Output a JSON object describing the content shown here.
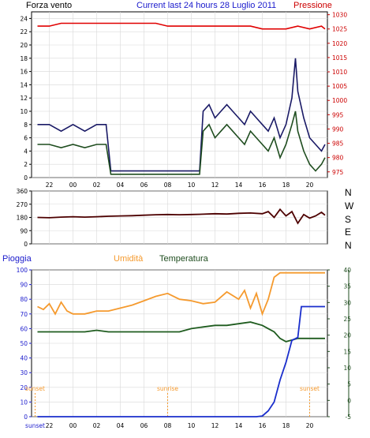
{
  "chart_data": [
    {
      "type": "line",
      "title": "Current last 24 hours 28 Luglio 2011",
      "left_label": "Forza vento",
      "right_label": "Pressione",
      "x_tick_labels": [
        "22",
        "00",
        "02",
        "04",
        "06",
        "08",
        "10",
        "12",
        "14",
        "16",
        "18",
        "20"
      ],
      "y_left_ticks": [
        "0",
        "2",
        "4",
        "6",
        "8",
        "10",
        "12",
        "14",
        "16",
        "18",
        "20",
        "22",
        "24"
      ],
      "y_left_lim": [
        0,
        25
      ],
      "y_right_ticks": [
        "975",
        "980",
        "985",
        "990",
        "995",
        "1000",
        "1005",
        "1010",
        "1015",
        "1020",
        "1025",
        "1030"
      ],
      "y_right_lim": [
        973,
        1031
      ],
      "x_lim": [
        20.5,
        45.5
      ],
      "series": [
        {
          "axis": "left",
          "color": "#1a1a66",
          "x": [
            21,
            22,
            23,
            24,
            25,
            26,
            26.8,
            27.2,
            28,
            29,
            30,
            31,
            32,
            33,
            34,
            34.7,
            35,
            35.5,
            36,
            36.5,
            37,
            37.5,
            38,
            38.5,
            39,
            39.5,
            40,
            40.5,
            41,
            41.5,
            42,
            42.5,
            42.8,
            43,
            43.5,
            44,
            44.5,
            45,
            45.3
          ],
          "y": [
            8,
            8,
            7,
            8,
            7,
            8,
            8,
            1,
            1,
            1,
            1,
            1,
            1,
            1,
            1,
            1,
            10,
            11,
            9,
            10,
            11,
            10,
            9,
            8,
            10,
            9,
            8,
            7,
            9,
            6,
            8,
            12,
            18,
            13,
            9,
            6,
            5,
            4,
            5
          ]
        },
        {
          "axis": "left",
          "color": "#1f4d1f",
          "x": [
            21,
            22,
            23,
            24,
            25,
            26,
            26.8,
            27.2,
            28,
            29,
            30,
            31,
            32,
            33,
            34,
            34.7,
            35,
            35.5,
            36,
            36.5,
            37,
            37.5,
            38,
            38.5,
            39,
            39.5,
            40,
            40.5,
            41,
            41.5,
            42,
            42.5,
            42.8,
            43,
            43.5,
            44,
            44.5,
            45,
            45.3
          ],
          "y": [
            5,
            5,
            4.5,
            5,
            4.5,
            5,
            5,
            0.5,
            0.5,
            0.5,
            0.5,
            0.5,
            0.5,
            0.5,
            0.5,
            0.5,
            7,
            8,
            6,
            7,
            8,
            7,
            6,
            5,
            7,
            6,
            5,
            4,
            6,
            3,
            5,
            8,
            10,
            7,
            4,
            2,
            1,
            2,
            3
          ]
        },
        {
          "axis": "right",
          "color": "#e00000",
          "x": [
            21,
            22,
            23,
            24,
            25,
            26,
            27,
            28,
            29,
            30,
            31,
            32,
            33,
            34,
            35,
            36,
            37,
            38,
            39,
            40,
            41,
            42,
            43,
            44,
            45,
            45.3
          ],
          "y": [
            1026,
            1026,
            1027,
            1027,
            1027,
            1027,
            1027,
            1027,
            1027,
            1027,
            1027,
            1026,
            1026,
            1026,
            1026,
            1026,
            1026,
            1026,
            1026,
            1025,
            1025,
            1025,
            1026,
            1025,
            1026,
            1025
          ]
        }
      ]
    },
    {
      "type": "line",
      "right_labels": [
        "N",
        "W",
        "S",
        "E",
        "N"
      ],
      "y_ticks": [
        "0",
        "90",
        "180",
        "270",
        "360"
      ],
      "y_lim": [
        0,
        360
      ],
      "x_lim": [
        20.5,
        45.5
      ],
      "series": [
        {
          "color": "#4d0000",
          "x": [
            21,
            22,
            23,
            24,
            25,
            26,
            27,
            28,
            29,
            30,
            31,
            32,
            33,
            34,
            35,
            36,
            37,
            38,
            39,
            40,
            40.5,
            41,
            41.5,
            42,
            42.5,
            43,
            43.5,
            44,
            44.5,
            45,
            45.3
          ],
          "y": [
            180,
            178,
            182,
            185,
            182,
            185,
            188,
            190,
            192,
            195,
            198,
            200,
            198,
            200,
            202,
            205,
            203,
            208,
            210,
            205,
            220,
            180,
            235,
            190,
            220,
            140,
            200,
            175,
            190,
            215,
            195
          ]
        }
      ]
    },
    {
      "type": "line",
      "left_label": "Pioggia",
      "mid_labels": [
        "Umidità",
        "Temperatura"
      ],
      "x_tick_labels": [
        "sunset",
        "22",
        "00",
        "02",
        "04",
        "06",
        "08",
        "10",
        "12",
        "14",
        "16",
        "18",
        "20"
      ],
      "y_left_ticks": [
        "0",
        "10",
        "20",
        "30",
        "40",
        "50",
        "60",
        "70",
        "80",
        "90",
        "100"
      ],
      "y_left_lim": [
        0,
        100
      ],
      "y_right_ticks": [
        "-5",
        "0",
        "5",
        "10",
        "15",
        "20",
        "25",
        "30",
        "35",
        "40"
      ],
      "y_right_lim": [
        -5,
        40
      ],
      "x_lim": [
        20.5,
        45.5
      ],
      "annotations": [
        {
          "text": "sunset",
          "x": 20.8
        },
        {
          "text": "sunrise",
          "x": 32.0
        },
        {
          "text": "sunset",
          "x": 44.0
        }
      ],
      "series": [
        {
          "axis": "left",
          "color": "#f59a2e",
          "x": [
            21,
            21.5,
            22,
            22.5,
            23,
            23.5,
            24,
            25,
            26,
            27,
            28,
            29,
            30,
            31,
            32,
            33,
            34,
            35,
            36,
            37,
            38,
            38.5,
            39,
            39.5,
            40,
            40.5,
            41,
            41.5,
            42,
            43,
            44,
            45,
            45.3
          ],
          "y": [
            75,
            73,
            77,
            70,
            78,
            72,
            70,
            70,
            72,
            72,
            74,
            76,
            79,
            82,
            84,
            80,
            79,
            77,
            78,
            85,
            80,
            86,
            74,
            84,
            70,
            80,
            95,
            98,
            98,
            98,
            98,
            98,
            98
          ]
        },
        {
          "axis": "right",
          "color": "#1f5c1f",
          "x": [
            21,
            22,
            23,
            24,
            25,
            26,
            27,
            28,
            29,
            30,
            31,
            32,
            33,
            34,
            35,
            36,
            37,
            38,
            39,
            40,
            40.5,
            41,
            41.5,
            42,
            42.5,
            43,
            44,
            45,
            45.3
          ],
          "y": [
            21,
            21,
            21,
            21,
            21,
            21.5,
            21,
            21,
            21,
            21,
            21,
            21,
            21,
            22,
            22.5,
            23,
            23,
            23.5,
            24,
            23,
            22,
            21,
            19,
            18,
            18.5,
            19,
            19,
            19,
            19
          ]
        },
        {
          "axis": "left",
          "color": "#1a2ecc",
          "x": [
            21,
            25,
            30,
            35,
            39.5,
            40,
            40.5,
            41,
            41.5,
            42,
            42.5,
            43,
            43.3,
            43.6,
            45,
            45.3
          ],
          "y": [
            0,
            0,
            0,
            0,
            0,
            0.5,
            4,
            10,
            25,
            37,
            52,
            54,
            75,
            75,
            75,
            75
          ]
        }
      ]
    }
  ]
}
